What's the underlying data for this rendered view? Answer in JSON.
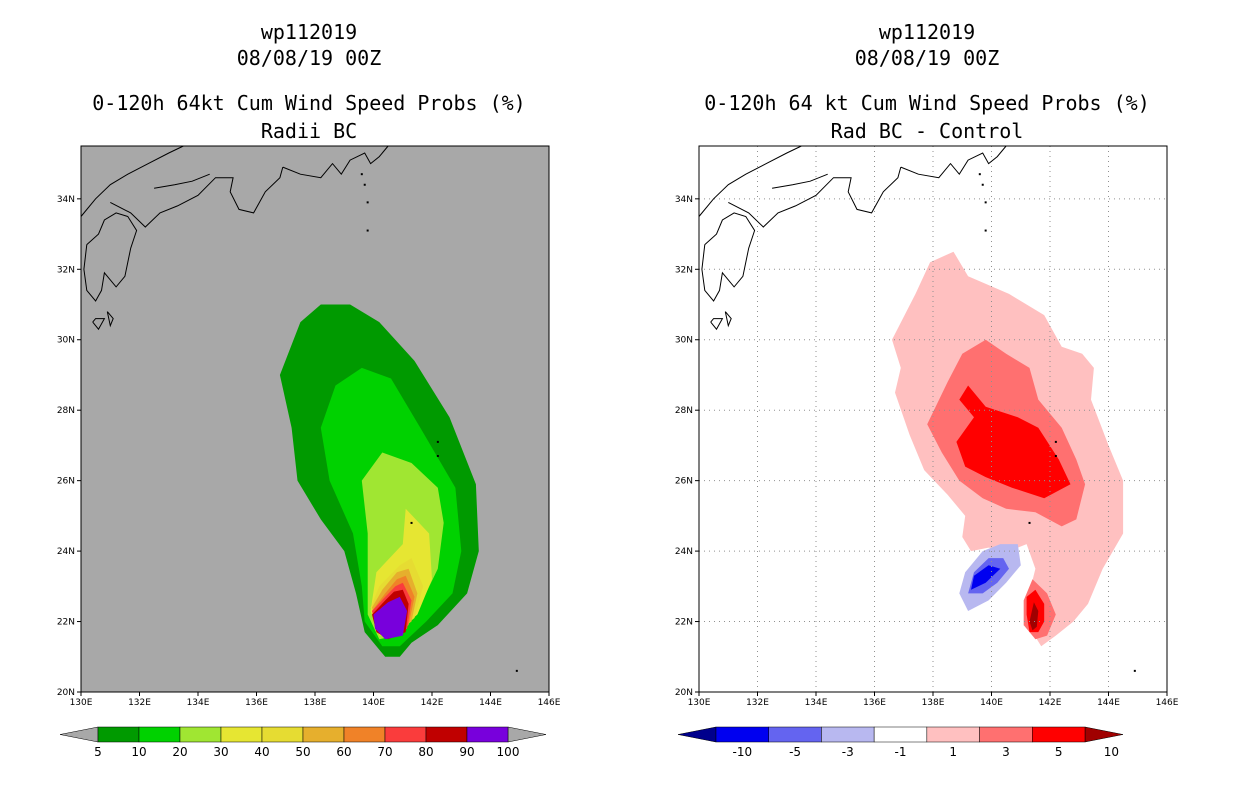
{
  "chart_data": [
    {
      "type": "heatmap",
      "storm_id": "wp112019",
      "init_time": "08/08/19 00Z",
      "title": "0-120h 64kt Cum Wind Speed Probs (%)",
      "subtitle": "Radii BC",
      "xlabel": "",
      "ylabel": "",
      "xlim": [
        130,
        146
      ],
      "ylim": [
        20,
        35.5
      ],
      "x_ticks": [
        "130E",
        "132E",
        "134E",
        "136E",
        "138E",
        "140E",
        "142E",
        "144E",
        "146E"
      ],
      "y_ticks": [
        "20N",
        "22N",
        "24N",
        "26N",
        "28N",
        "30N",
        "32N",
        "34N"
      ],
      "grid": false,
      "background_color": "#a8a8a8",
      "colorbar_labels": [
        "5",
        "10",
        "20",
        "30",
        "40",
        "50",
        "60",
        "70",
        "80",
        "90",
        "100"
      ],
      "levels": [
        {
          "min": 5,
          "color": "#009a00",
          "poly": [
            [
              139.2,
              31.0
            ],
            [
              140.2,
              30.5
            ],
            [
              141.4,
              29.4
            ],
            [
              142.6,
              27.8
            ],
            [
              143.5,
              25.9
            ],
            [
              143.6,
              24.0
            ],
            [
              143.2,
              22.8
            ],
            [
              142.2,
              21.9
            ],
            [
              141.3,
              21.4
            ],
            [
              140.9,
              21.0
            ],
            [
              140.4,
              21.0
            ],
            [
              139.7,
              21.7
            ],
            [
              139.4,
              22.8
            ],
            [
              139.0,
              24.0
            ],
            [
              138.2,
              24.9
            ],
            [
              137.4,
              26.0
            ],
            [
              137.2,
              27.5
            ],
            [
              136.8,
              29.0
            ],
            [
              137.5,
              30.5
            ],
            [
              138.2,
              31.0
            ]
          ]
        },
        {
          "min": 10,
          "color": "#00d200",
          "poly": [
            [
              139.6,
              29.2
            ],
            [
              140.6,
              28.9
            ],
            [
              141.6,
              27.5
            ],
            [
              142.8,
              25.8
            ],
            [
              143.0,
              24.0
            ],
            [
              142.7,
              22.8
            ],
            [
              141.8,
              22.0
            ],
            [
              140.9,
              21.3
            ],
            [
              140.3,
              21.3
            ],
            [
              139.7,
              22.0
            ],
            [
              139.6,
              23.0
            ],
            [
              139.3,
              24.5
            ],
            [
              138.5,
              26.0
            ],
            [
              138.2,
              27.5
            ],
            [
              138.7,
              28.7
            ]
          ]
        },
        {
          "min": 20,
          "color": "#a0e632",
          "poly": [
            [
              140.3,
              26.8
            ],
            [
              141.3,
              26.5
            ],
            [
              142.2,
              25.8
            ],
            [
              142.4,
              24.8
            ],
            [
              142.2,
              23.5
            ],
            [
              141.5,
              22.3
            ],
            [
              140.8,
              21.6
            ],
            [
              140.2,
              21.5
            ],
            [
              139.8,
              22.2
            ],
            [
              139.8,
              23.2
            ],
            [
              139.8,
              24.5
            ],
            [
              139.6,
              26.0
            ]
          ]
        },
        {
          "min": 30,
          "color": "#e6e632",
          "poly": [
            [
              141.1,
              25.2
            ],
            [
              141.9,
              24.5
            ],
            [
              142.0,
              23.2
            ],
            [
              141.5,
              22.2
            ],
            [
              140.8,
              21.7
            ],
            [
              140.2,
              21.6
            ],
            [
              139.9,
              22.3
            ],
            [
              140.1,
              23.4
            ],
            [
              141.0,
              24.2
            ]
          ]
        },
        {
          "min": 40,
          "color": "#e6dc32",
          "poly": [
            [
              141.3,
              23.8
            ],
            [
              141.7,
              23.0
            ],
            [
              141.4,
              22.1
            ],
            [
              140.8,
              21.7
            ],
            [
              140.2,
              21.7
            ],
            [
              139.9,
              22.4
            ],
            [
              140.2,
              23.0
            ],
            [
              140.9,
              23.6
            ]
          ]
        },
        {
          "min": 50,
          "color": "#e6af2d",
          "poly": [
            [
              141.2,
              23.5
            ],
            [
              141.5,
              22.8
            ],
            [
              141.3,
              22.0
            ],
            [
              140.8,
              21.7
            ],
            [
              140.2,
              21.7
            ],
            [
              139.95,
              22.4
            ],
            [
              140.3,
              22.9
            ],
            [
              140.8,
              23.4
            ]
          ]
        },
        {
          "min": 60,
          "color": "#f08228",
          "poly": [
            [
              141.1,
              23.3
            ],
            [
              141.4,
              22.7
            ],
            [
              141.2,
              21.9
            ],
            [
              140.7,
              21.6
            ],
            [
              140.2,
              21.7
            ],
            [
              139.95,
              22.3
            ],
            [
              140.4,
              22.8
            ],
            [
              140.8,
              23.2
            ]
          ]
        },
        {
          "min": 70,
          "color": "#fa3c3c",
          "poly": [
            [
              141.0,
              23.1
            ],
            [
              141.3,
              22.6
            ],
            [
              141.15,
              21.8
            ],
            [
              140.6,
              21.6
            ],
            [
              140.15,
              21.7
            ],
            [
              139.95,
              22.3
            ],
            [
              140.4,
              22.7
            ],
            [
              140.75,
              23.0
            ]
          ]
        },
        {
          "min": 80,
          "color": "#c00000",
          "poly": [
            [
              141.0,
              22.9
            ],
            [
              141.2,
              22.5
            ],
            [
              141.1,
              21.7
            ],
            [
              140.5,
              21.5
            ],
            [
              140.1,
              21.7
            ],
            [
              139.95,
              22.2
            ],
            [
              140.4,
              22.6
            ],
            [
              140.7,
              22.85
            ]
          ]
        },
        {
          "min": 90,
          "color": "#7800dc",
          "poly": [
            [
              140.9,
              22.7
            ],
            [
              141.15,
              22.3
            ],
            [
              141.0,
              21.6
            ],
            [
              140.4,
              21.5
            ],
            [
              140.05,
              21.8
            ],
            [
              140.0,
              22.2
            ],
            [
              140.5,
              22.55
            ]
          ]
        }
      ]
    },
    {
      "type": "heatmap",
      "storm_id": "wp112019",
      "init_time": "08/08/19 00Z",
      "title": "0-120h 64 kt Cum Wind Speed Probs (%)",
      "subtitle": "Rad BC - Control",
      "xlabel": "",
      "ylabel": "",
      "xlim": [
        130,
        146
      ],
      "ylim": [
        20,
        35.5
      ],
      "x_ticks": [
        "130E",
        "132E",
        "134E",
        "136E",
        "138E",
        "140E",
        "142E",
        "144E",
        "146E"
      ],
      "y_ticks": [
        "20N",
        "22N",
        "24N",
        "26N",
        "28N",
        "30N",
        "32N",
        "34N"
      ],
      "grid": true,
      "background_color": "#ffffff",
      "colorbar_labels": [
        "-10",
        "-5",
        "-3",
        "-1",
        "1",
        "3",
        "5",
        "10"
      ],
      "levels": [
        {
          "min": 1,
          "color": "#ffc0c0",
          "poly": [
            [
              138.7,
              32.5
            ],
            [
              139.2,
              31.8
            ],
            [
              140.6,
              31.3
            ],
            [
              141.8,
              30.7
            ],
            [
              142.4,
              29.8
            ],
            [
              143.1,
              29.6
            ],
            [
              143.5,
              29.2
            ],
            [
              143.4,
              28.3
            ],
            [
              144.0,
              27.0
            ],
            [
              144.5,
              26.0
            ],
            [
              144.5,
              24.5
            ],
            [
              143.8,
              23.5
            ],
            [
              143.3,
              22.5
            ],
            [
              142.8,
              22.0
            ],
            [
              142.2,
              21.6
            ],
            [
              141.7,
              21.3
            ],
            [
              141.4,
              21.7
            ],
            [
              141.2,
              22.5
            ],
            [
              141.5,
              23.5
            ],
            [
              141.2,
              24.2
            ],
            [
              140.6,
              24.0
            ],
            [
              139.9,
              24.1
            ],
            [
              139.3,
              24.0
            ],
            [
              139.0,
              24.4
            ],
            [
              139.1,
              25.0
            ],
            [
              138.5,
              25.6
            ],
            [
              137.7,
              26.3
            ],
            [
              137.2,
              27.3
            ],
            [
              136.7,
              28.5
            ],
            [
              136.9,
              29.2
            ],
            [
              136.6,
              30.0
            ],
            [
              137.4,
              31.3
            ],
            [
              137.9,
              32.2
            ]
          ]
        },
        {
          "min": 3,
          "color": "#ff7070",
          "poly": [
            [
              139.8,
              30.0
            ],
            [
              140.5,
              29.6
            ],
            [
              141.3,
              29.2
            ],
            [
              141.6,
              28.3
            ],
            [
              142.4,
              27.5
            ],
            [
              142.9,
              26.6
            ],
            [
              143.2,
              25.9
            ],
            [
              142.9,
              24.9
            ],
            [
              142.4,
              24.7
            ],
            [
              141.5,
              25.1
            ],
            [
              140.5,
              25.2
            ],
            [
              139.7,
              25.5
            ],
            [
              138.9,
              26.0
            ],
            [
              138.3,
              26.8
            ],
            [
              137.8,
              27.6
            ],
            [
              138.5,
              28.8
            ],
            [
              139.0,
              29.6
            ]
          ]
        },
        {
          "min": 5,
          "color": "#ff0000",
          "poly": [
            [
              139.2,
              28.7
            ],
            [
              139.8,
              28.1
            ],
            [
              140.9,
              27.8
            ],
            [
              141.6,
              27.5
            ],
            [
              142.3,
              26.6
            ],
            [
              142.7,
              25.9
            ],
            [
              141.8,
              25.5
            ],
            [
              140.7,
              25.8
            ],
            [
              139.8,
              26.1
            ],
            [
              139.1,
              26.4
            ],
            [
              138.8,
              27.1
            ],
            [
              139.4,
              27.8
            ],
            [
              138.9,
              28.3
            ]
          ]
        },
        {
          "min": -3,
          "color": "#b8b8f0",
          "poly": [
            [
              140.9,
              24.2
            ],
            [
              141.0,
              23.6
            ],
            [
              140.5,
              23.1
            ],
            [
              139.9,
              22.6
            ],
            [
              139.2,
              22.3
            ],
            [
              138.9,
              22.8
            ],
            [
              139.1,
              23.4
            ],
            [
              139.7,
              24.0
            ],
            [
              140.3,
              24.2
            ]
          ]
        },
        {
          "min": -5,
          "color": "#6464f0",
          "poly": [
            [
              140.4,
              23.8
            ],
            [
              140.6,
              23.5
            ],
            [
              140.2,
              23.1
            ],
            [
              139.7,
              22.8
            ],
            [
              139.2,
              22.8
            ],
            [
              139.4,
              23.4
            ],
            [
              139.9,
              23.8
            ]
          ]
        },
        {
          "min": -10,
          "color": "#0000f0",
          "poly": [
            [
              139.9,
              23.6
            ],
            [
              140.3,
              23.5
            ],
            [
              139.8,
              23.1
            ],
            [
              139.3,
              22.9
            ],
            [
              139.4,
              23.3
            ]
          ]
        },
        {
          "min": 3,
          "color": "#ff7070",
          "poly": [
            [
              141.4,
              23.2
            ],
            [
              141.9,
              22.8
            ],
            [
              142.2,
              22.2
            ],
            [
              141.9,
              21.6
            ],
            [
              141.5,
              21.5
            ],
            [
              141.1,
              21.9
            ],
            [
              141.1,
              22.6
            ]
          ]
        },
        {
          "min": 5,
          "color": "#ff0000",
          "poly": [
            [
              141.5,
              22.9
            ],
            [
              141.8,
              22.5
            ],
            [
              141.8,
              22.0
            ],
            [
              141.6,
              21.7
            ],
            [
              141.3,
              21.7
            ],
            [
              141.2,
              22.2
            ],
            [
              141.2,
              22.7
            ]
          ]
        },
        {
          "min": 10,
          "color": "#a00000",
          "poly": [
            [
              141.45,
              22.55
            ],
            [
              141.6,
              22.3
            ],
            [
              141.55,
              21.85
            ],
            [
              141.4,
              21.75
            ],
            [
              141.3,
              22.0
            ]
          ]
        }
      ]
    }
  ],
  "colorbars": {
    "left": [
      "#009a00",
      "#00d200",
      "#a0e632",
      "#e6e632",
      "#e6dc32",
      "#e6af2d",
      "#f08228",
      "#fa3c3c",
      "#c00000",
      "#7800dc"
    ],
    "right": [
      "#00008c",
      "#0000f0",
      "#6464f0",
      "#b8b8f0",
      "#ffffff",
      "#ffc0c0",
      "#ff7070",
      "#ff0000",
      "#a00000"
    ]
  }
}
